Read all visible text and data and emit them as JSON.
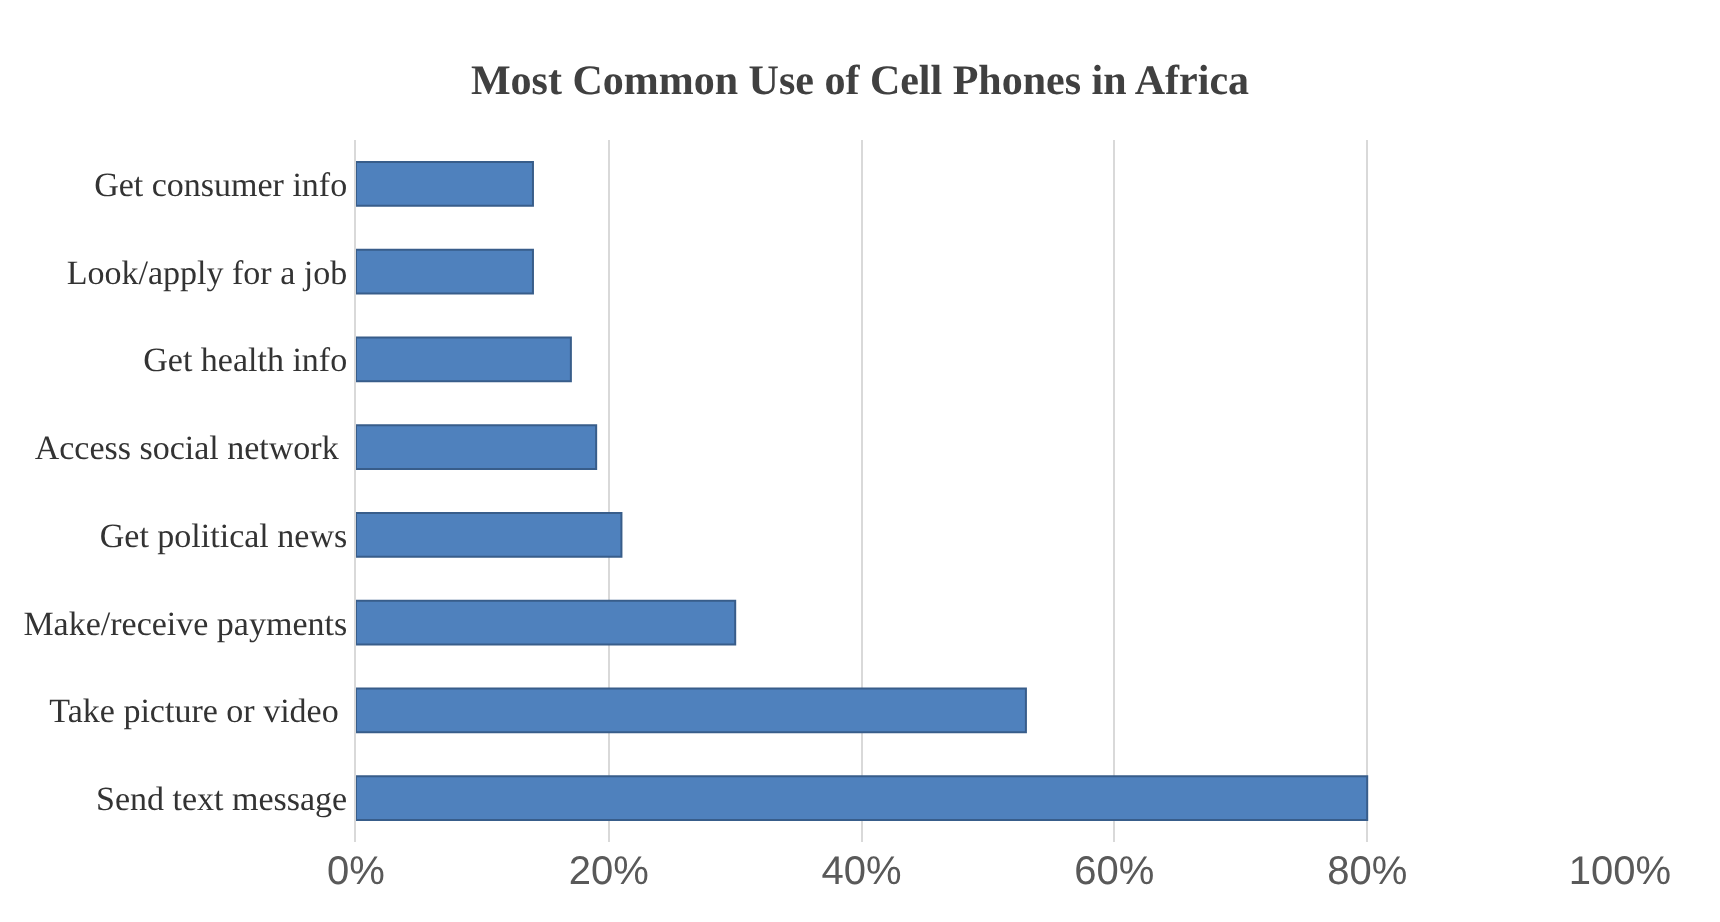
{
  "chart_data": {
    "type": "bar",
    "orientation": "horizontal",
    "title": "Most Common Use of Cell Phones in Africa",
    "categories": [
      "Get consumer info",
      "Look/apply for a job",
      "Get health info",
      "Access social network ",
      "Get political news",
      "Make/receive payments",
      "Take picture or video ",
      "Send text message"
    ],
    "values": [
      14,
      14,
      17,
      19,
      21,
      30,
      53,
      80
    ],
    "color": "#4f81bd",
    "xlim": [
      0,
      100
    ],
    "xticks": [
      {
        "value": 0,
        "label": "0%"
      },
      {
        "value": 20,
        "label": "20%"
      },
      {
        "value": 40,
        "label": "40%"
      },
      {
        "value": 60,
        "label": "60%"
      },
      {
        "value": 80,
        "label": "80%"
      },
      {
        "value": 100,
        "label": "100%"
      }
    ],
    "grid": "x"
  }
}
